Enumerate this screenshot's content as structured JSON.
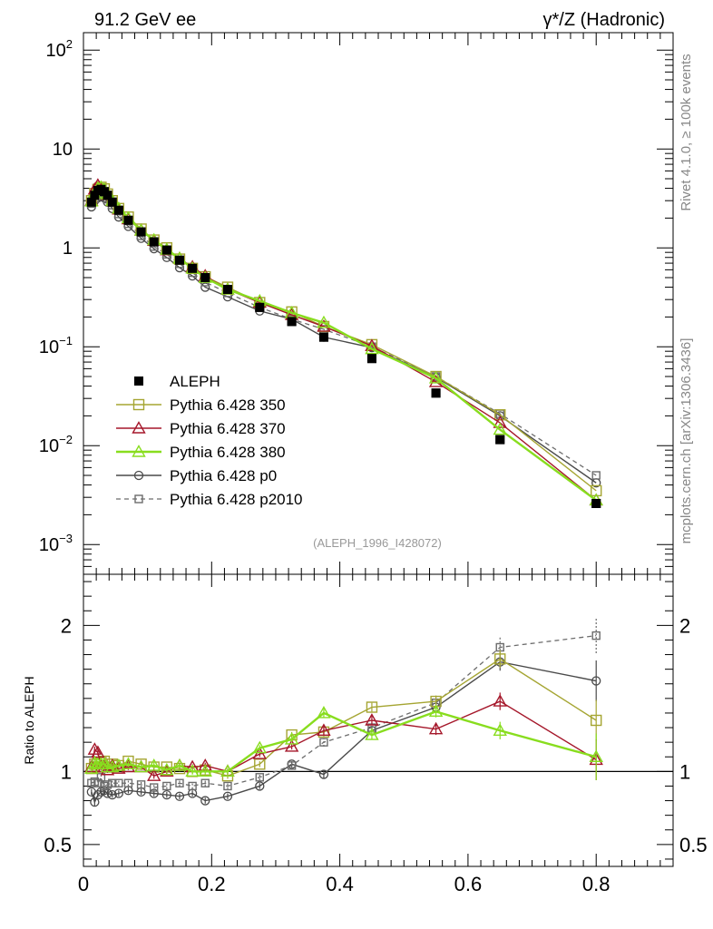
{
  "header": {
    "left_title": "91.2 GeV ee",
    "right_title": "γ*/Z (Hadronic)"
  },
  "side_labels": {
    "top": "Rivet 4.1.0, ≥ 100k events",
    "bottom": "mcplots.cern.ch [arXiv:1306.3436]"
  },
  "analysis_tag": "(ALEPH_1996_I428072)",
  "colors": {
    "data": "#000000",
    "p350": "#a5a532",
    "p370": "#a5172a",
    "p380": "#88dd1e",
    "p0": "#4a4a4a",
    "p2010": "#6c6c6c"
  },
  "chart_data": [
    {
      "type": "line",
      "yscale": "log",
      "xlim": [
        0,
        0.92
      ],
      "ylim": [
        0.0005,
        150
      ],
      "y_ticks": [
        {
          "value": 0.001,
          "label": "10",
          "exp": "−3"
        },
        {
          "value": 0.01,
          "label": "10",
          "exp": "−2"
        },
        {
          "value": 0.1,
          "label": "10",
          "exp": "−1"
        },
        {
          "value": 1,
          "label": "1",
          "exp": ""
        },
        {
          "value": 10,
          "label": "10",
          "exp": ""
        },
        {
          "value": 100,
          "label": "10",
          "exp": "2"
        }
      ],
      "x": [
        0.0125,
        0.0175,
        0.0225,
        0.0275,
        0.0325,
        0.0375,
        0.045,
        0.055,
        0.07,
        0.09,
        0.11,
        0.13,
        0.15,
        0.17,
        0.19,
        0.225,
        0.275,
        0.325,
        0.375,
        0.45,
        0.55,
        0.65,
        0.8
      ],
      "series": [
        {
          "name": "ALEPH",
          "key": "data",
          "style": "filled-square",
          "values": [
            2.9,
            3.4,
            3.8,
            3.9,
            3.7,
            3.4,
            2.9,
            2.4,
            1.9,
            1.45,
            1.15,
            0.95,
            0.75,
            0.62,
            0.5,
            0.38,
            0.25,
            0.18,
            0.125,
            0.076,
            0.034,
            0.0115,
            0.0026
          ]
        },
        {
          "name": "Pythia 6.428 350",
          "key": "p350",
          "style": "open-square",
          "values": [
            3.0,
            3.55,
            3.9,
            4.1,
            3.95,
            3.5,
            3.0,
            2.5,
            2.05,
            1.55,
            1.2,
            1.0,
            0.77,
            0.62,
            0.51,
            0.4,
            0.28,
            0.225,
            0.16,
            0.105,
            0.05,
            0.0205,
            0.0035
          ]
        },
        {
          "name": "Pythia 6.428 370",
          "key": "p370",
          "style": "open-triangle",
          "values": [
            3.0,
            3.9,
            4.3,
            4.0,
            3.8,
            3.45,
            3.0,
            2.45,
            1.95,
            1.5,
            1.18,
            0.95,
            0.78,
            0.64,
            0.52,
            0.38,
            0.28,
            0.21,
            0.16,
            0.102,
            0.044,
            0.017,
            0.0028
          ]
        },
        {
          "name": "Pythia 6.428 380",
          "key": "p380",
          "style": "open-triangle",
          "values": [
            2.95,
            3.6,
            4.0,
            4.1,
            3.9,
            3.5,
            3.0,
            2.5,
            2.0,
            1.5,
            1.2,
            0.96,
            0.78,
            0.62,
            0.5,
            0.38,
            0.29,
            0.22,
            0.175,
            0.095,
            0.048,
            0.0145,
            0.0028
          ]
        },
        {
          "name": "Pythia 6.428 p0",
          "key": "p0",
          "style": "open-circle",
          "values": [
            2.6,
            3.0,
            3.2,
            3.3,
            3.2,
            2.9,
            2.5,
            2.05,
            1.65,
            1.25,
            0.98,
            0.8,
            0.63,
            0.52,
            0.4,
            0.32,
            0.23,
            0.19,
            0.125,
            0.098,
            0.049,
            0.02,
            0.0042
          ]
        },
        {
          "name": "Pythia 6.428 p2010",
          "key": "p2010",
          "style": "open-square-dashed",
          "values": [
            2.8,
            3.2,
            3.5,
            3.6,
            3.4,
            3.1,
            2.7,
            2.2,
            1.75,
            1.32,
            1.03,
            0.86,
            0.69,
            0.56,
            0.45,
            0.35,
            0.25,
            0.19,
            0.15,
            0.1,
            0.05,
            0.021,
            0.005
          ]
        }
      ]
    },
    {
      "type": "line",
      "ylabel": "Ratio to ALEPH",
      "xlim": [
        0,
        0.92
      ],
      "ylim": [
        0.35,
        2.35
      ],
      "y_ticks": [
        {
          "value": 0.5,
          "label": "0.5"
        },
        {
          "value": 1,
          "label": "1"
        },
        {
          "value": 2,
          "label": "2"
        }
      ],
      "x_ticks": [
        {
          "value": 0,
          "label": "0"
        },
        {
          "value": 0.2,
          "label": "0.2"
        },
        {
          "value": 0.4,
          "label": "0.4"
        },
        {
          "value": 0.6,
          "label": "0.6"
        },
        {
          "value": 0.8,
          "label": "0.8"
        }
      ],
      "reference": 1,
      "x": [
        0.0125,
        0.0175,
        0.0225,
        0.0275,
        0.0325,
        0.0375,
        0.045,
        0.055,
        0.07,
        0.09,
        0.11,
        0.13,
        0.15,
        0.17,
        0.19,
        0.225,
        0.275,
        0.325,
        0.375,
        0.45,
        0.55,
        0.65,
        0.8
      ],
      "series": [
        {
          "name": "Pythia 6.428 350",
          "key": "p350",
          "style": "open-square",
          "values": [
            1.02,
            1.05,
            1.03,
            1.06,
            1.07,
            1.03,
            1.05,
            1.04,
            1.07,
            1.05,
            1.03,
            1.03,
            1.02,
            1.0,
            1.01,
            0.97,
            1.05,
            1.25,
            1.27,
            1.44,
            1.48,
            1.77,
            1.35
          ],
          "errors": [
            0.02,
            0.02,
            0.02,
            0.02,
            0.02,
            0.02,
            0.02,
            0.02,
            0.02,
            0.02,
            0.02,
            0.02,
            0.02,
            0.02,
            0.02,
            0.02,
            0.02,
            0.02,
            0.03,
            0.03,
            0.04,
            0.06,
            0.14
          ]
        },
        {
          "name": "Pythia 6.428 370",
          "key": "p370",
          "style": "open-triangle",
          "values": [
            1.03,
            1.15,
            1.13,
            1.03,
            1.03,
            1.01,
            1.04,
            1.02,
            1.03,
            1.03,
            0.97,
            1.0,
            1.04,
            1.03,
            1.04,
            1.0,
            1.12,
            1.17,
            1.28,
            1.35,
            1.29,
            1.48,
            1.08
          ],
          "errors": [
            0.02,
            0.02,
            0.02,
            0.02,
            0.02,
            0.02,
            0.02,
            0.02,
            0.02,
            0.02,
            0.02,
            0.02,
            0.02,
            0.02,
            0.02,
            0.02,
            0.02,
            0.02,
            0.03,
            0.03,
            0.04,
            0.06,
            0.14
          ]
        },
        {
          "name": "Pythia 6.428 380",
          "key": "p380",
          "style": "open-triangle",
          "values": [
            1.02,
            1.06,
            1.05,
            1.05,
            1.05,
            1.03,
            1.03,
            1.04,
            1.05,
            1.03,
            1.04,
            1.01,
            1.04,
            1.0,
            1.0,
            1.0,
            1.16,
            1.22,
            1.4,
            1.25,
            1.41,
            1.28,
            1.1
          ],
          "errors": [
            0.02,
            0.02,
            0.02,
            0.02,
            0.02,
            0.02,
            0.02,
            0.02,
            0.02,
            0.02,
            0.02,
            0.02,
            0.02,
            0.02,
            0.02,
            0.02,
            0.02,
            0.02,
            0.03,
            0.03,
            0.04,
            0.06,
            0.16
          ]
        },
        {
          "name": "Pythia 6.428 p0",
          "key": "p0",
          "style": "open-circle",
          "values": [
            0.86,
            0.79,
            0.84,
            0.86,
            0.87,
            0.85,
            0.84,
            0.85,
            0.87,
            0.86,
            0.85,
            0.84,
            0.83,
            0.85,
            0.8,
            0.83,
            0.9,
            1.05,
            0.98,
            1.28,
            1.44,
            1.75,
            1.62
          ],
          "errors": [
            0.02,
            0.03,
            0.02,
            0.02,
            0.02,
            0.02,
            0.02,
            0.02,
            0.02,
            0.02,
            0.02,
            0.02,
            0.02,
            0.02,
            0.02,
            0.02,
            0.02,
            0.02,
            0.03,
            0.03,
            0.04,
            0.06,
            0.14
          ]
        },
        {
          "name": "Pythia 6.428 p2010",
          "key": "p2010",
          "style": "open-square-dashed",
          "values": [
            0.92,
            0.93,
            0.92,
            0.96,
            0.9,
            0.91,
            0.92,
            0.92,
            0.92,
            0.91,
            0.89,
            0.9,
            0.92,
            0.9,
            0.92,
            0.9,
            0.96,
            1.04,
            1.2,
            1.3,
            1.47,
            1.85,
            1.93
          ],
          "errors": [
            0.02,
            0.02,
            0.02,
            0.02,
            0.02,
            0.02,
            0.02,
            0.02,
            0.02,
            0.02,
            0.02,
            0.02,
            0.02,
            0.02,
            0.02,
            0.02,
            0.02,
            0.02,
            0.03,
            0.03,
            0.04,
            0.07,
            0.12
          ]
        }
      ]
    }
  ]
}
